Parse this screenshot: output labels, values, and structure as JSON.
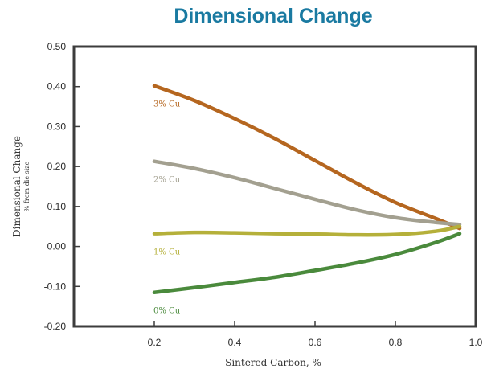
{
  "chart_data": {
    "type": "line",
    "title": "Dimensional Change",
    "xlabel": "Sintered Carbon, %",
    "ylabel": "Dimensional Change",
    "ylabel_sub": "% from die size",
    "xlim": [
      0.0,
      1.0
    ],
    "ylim": [
      -0.2,
      0.5
    ],
    "x_ticks": [
      "0.2",
      "0.4",
      "0.6",
      "0.8",
      "1.0"
    ],
    "y_ticks": [
      "0.50",
      "0.40",
      "0.30",
      "0.20",
      "0.10",
      "0.00",
      "-0.10",
      "-0.20"
    ],
    "grid": false,
    "series": [
      {
        "name": "3% Cu",
        "color": "#b5661f",
        "x": [
          0.2,
          0.3,
          0.4,
          0.5,
          0.6,
          0.7,
          0.8,
          0.9,
          0.96
        ],
        "y": [
          0.402,
          0.365,
          0.32,
          0.27,
          0.215,
          0.16,
          0.11,
          0.07,
          0.045
        ]
      },
      {
        "name": "2% Cu",
        "color": "#a3a090",
        "x": [
          0.2,
          0.3,
          0.4,
          0.5,
          0.6,
          0.7,
          0.8,
          0.9,
          0.96
        ],
        "y": [
          0.213,
          0.195,
          0.172,
          0.145,
          0.118,
          0.092,
          0.072,
          0.06,
          0.055
        ]
      },
      {
        "name": "1% Cu",
        "color": "#b5b03a",
        "x": [
          0.2,
          0.3,
          0.4,
          0.5,
          0.6,
          0.7,
          0.8,
          0.9,
          0.96
        ],
        "y": [
          0.032,
          0.035,
          0.034,
          0.032,
          0.031,
          0.029,
          0.03,
          0.038,
          0.05
        ]
      },
      {
        "name": "0% Cu",
        "color": "#4a8a3c",
        "x": [
          0.2,
          0.3,
          0.4,
          0.5,
          0.6,
          0.7,
          0.8,
          0.9,
          0.96
        ],
        "y": [
          -0.115,
          -0.103,
          -0.09,
          -0.077,
          -0.06,
          -0.042,
          -0.02,
          0.01,
          0.032
        ]
      }
    ]
  },
  "colors": {
    "title": "#1a7aa1",
    "frame": "#3c3c3c",
    "plot_bg": "#ffffff"
  }
}
